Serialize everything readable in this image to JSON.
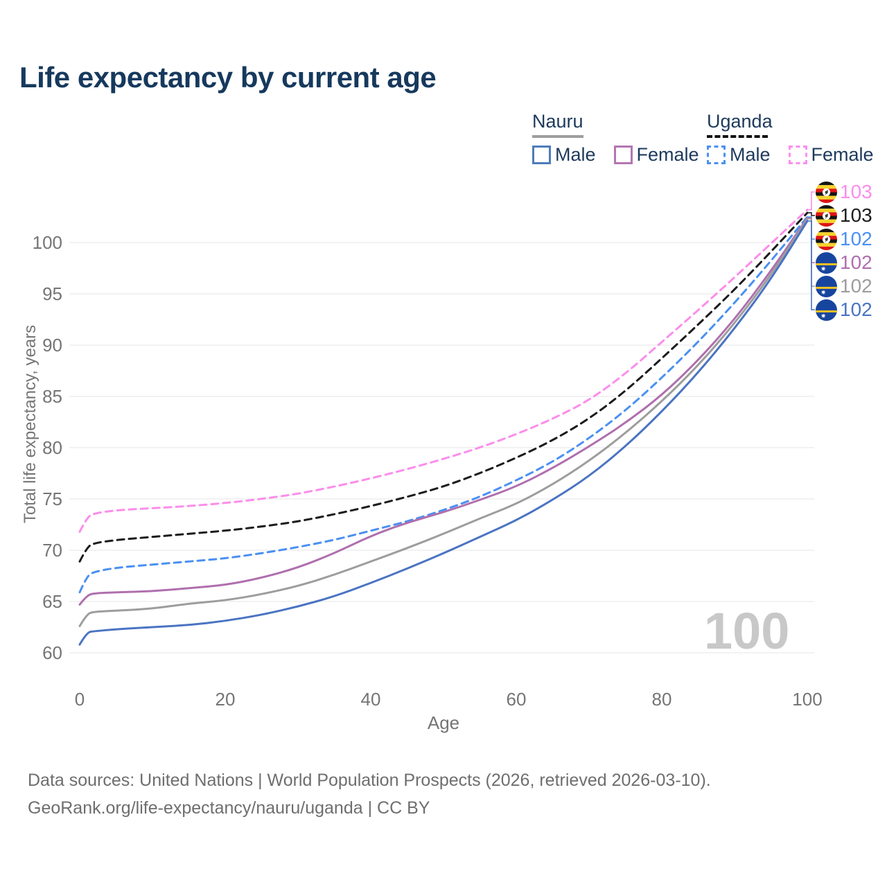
{
  "title": "Life expectancy by current age",
  "legend": {
    "groups": [
      {
        "country": "Nauru",
        "line_style": "solid",
        "items": [
          {
            "label": "Male",
            "color": "#4d7cba"
          },
          {
            "label": "Female",
            "color": "#b476b2"
          }
        ]
      },
      {
        "country": "Uganda",
        "line_style": "dashed",
        "items": [
          {
            "label": "Male",
            "color": "#4a90f2"
          },
          {
            "label": "Female",
            "color": "#fc8df0"
          }
        ]
      }
    ]
  },
  "watermark_age": "100",
  "footer": {
    "line1": "Data sources: United Nations | World Population Prospects (2026, retrieved 2026-03-10).",
    "line2": "GeoRank.org/life-expectancy/nauru/uganda | CC BY"
  },
  "chart_data": {
    "type": "line",
    "title": "Life expectancy by current age",
    "xlabel": "Age",
    "ylabel": "Total life expectancy, years",
    "x_ticks": [
      0,
      20,
      40,
      60,
      80,
      100
    ],
    "y_ticks": [
      60,
      65,
      70,
      75,
      80,
      85,
      90,
      95,
      100
    ],
    "xlim": [
      0,
      100
    ],
    "ylim": [
      60,
      103.5
    ],
    "grid": "horizontal",
    "legend_position": "top-right",
    "ages": [
      0,
      1,
      2,
      5,
      10,
      15,
      20,
      25,
      30,
      35,
      40,
      45,
      50,
      55,
      60,
      65,
      70,
      75,
      80,
      85,
      90,
      95,
      100
    ],
    "series": [
      {
        "name": "Uganda Female",
        "flag": "uganda",
        "color": "#fb8deb",
        "dashed": true,
        "end_label": "103",
        "values": [
          71.8,
          73.2,
          73.6,
          73.9,
          74.1,
          74.3,
          74.6,
          75.0,
          75.5,
          76.2,
          77.0,
          77.9,
          78.9,
          80.0,
          81.3,
          82.8,
          84.6,
          87.2,
          90.3,
          93.4,
          96.6,
          99.9,
          103.2
        ]
      },
      {
        "name": "Uganda",
        "flag": "uganda",
        "color": "#1c1c1c",
        "dashed": true,
        "end_label": "103",
        "values": [
          68.9,
          70.3,
          70.7,
          71.0,
          71.3,
          71.6,
          71.9,
          72.3,
          72.8,
          73.5,
          74.3,
          75.2,
          76.2,
          77.5,
          79.0,
          80.7,
          82.8,
          85.5,
          88.7,
          92.0,
          95.4,
          99.1,
          102.9
        ]
      },
      {
        "name": "Uganda Male",
        "flag": "uganda",
        "color": "#4a90f2",
        "dashed": true,
        "end_label": "102",
        "values": [
          65.9,
          67.5,
          67.9,
          68.3,
          68.6,
          68.9,
          69.2,
          69.7,
          70.3,
          71.0,
          71.9,
          72.8,
          73.9,
          75.2,
          76.8,
          78.6,
          80.9,
          83.6,
          86.8,
          90.3,
          94.1,
          98.2,
          102.5
        ]
      },
      {
        "name": "Nauru Female",
        "flag": "nauru",
        "color": "#af6fae",
        "dashed": false,
        "end_label": "102",
        "values": [
          64.7,
          65.6,
          65.8,
          65.9,
          66.0,
          66.3,
          66.6,
          67.3,
          68.3,
          69.7,
          71.4,
          72.7,
          73.7,
          74.9,
          76.2,
          78.0,
          80.1,
          82.4,
          85.1,
          88.5,
          92.5,
          97.2,
          102.4
        ]
      },
      {
        "name": "Nauru",
        "flag": "nauru",
        "color": "#9d9d9d",
        "dashed": false,
        "end_label": "102",
        "values": [
          62.6,
          63.8,
          64.0,
          64.1,
          64.3,
          64.8,
          65.1,
          65.7,
          66.5,
          67.6,
          68.9,
          70.2,
          71.6,
          73.1,
          74.5,
          76.4,
          78.7,
          81.4,
          84.5,
          88.0,
          92.1,
          96.8,
          102.3
        ]
      },
      {
        "name": "Nauru Male",
        "flag": "nauru",
        "color": "#4a74c2",
        "dashed": false,
        "end_label": "102",
        "values": [
          60.8,
          62.0,
          62.1,
          62.3,
          62.5,
          62.7,
          63.1,
          63.7,
          64.5,
          65.5,
          66.8,
          68.2,
          69.7,
          71.3,
          72.9,
          74.9,
          77.2,
          80.1,
          83.5,
          87.3,
          91.6,
          96.4,
          102.1
        ]
      }
    ]
  }
}
